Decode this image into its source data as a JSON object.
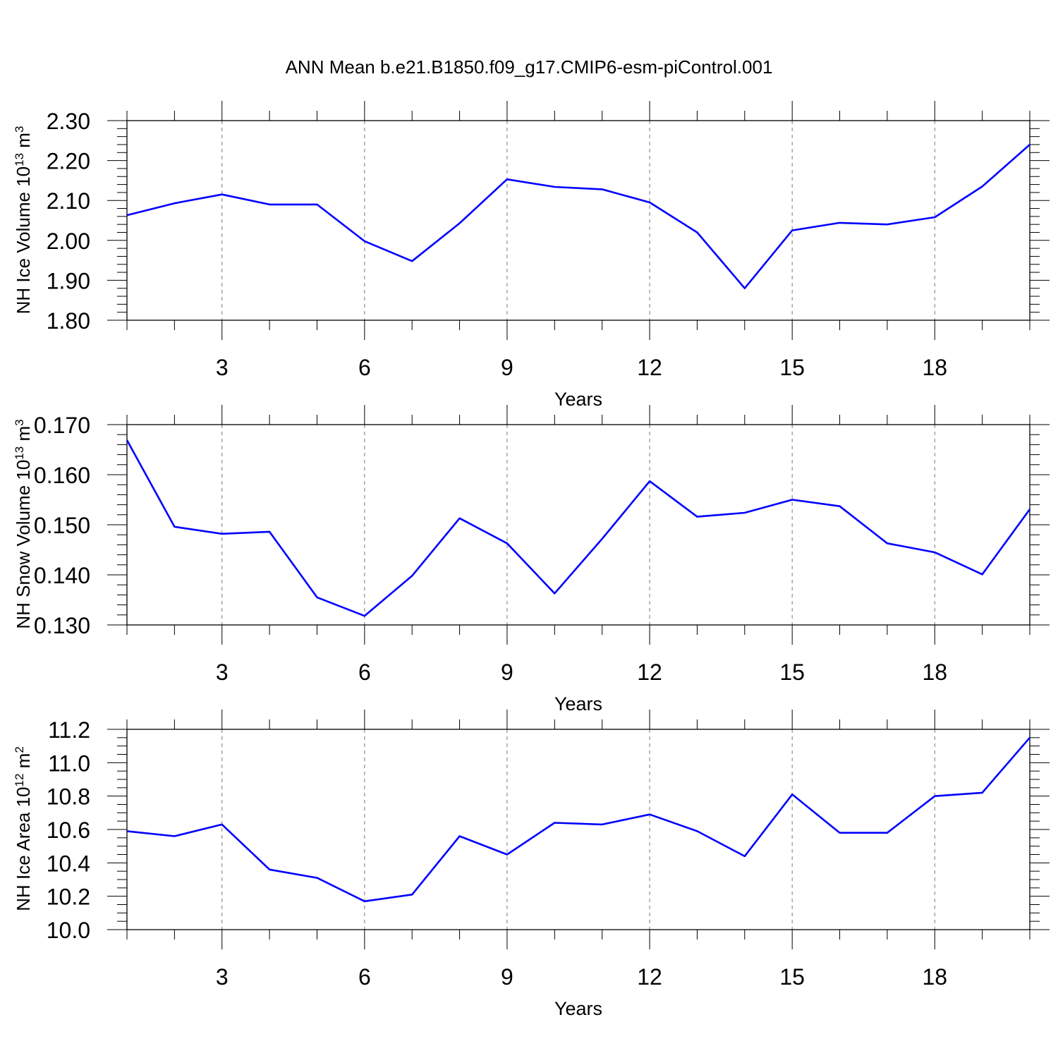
{
  "title": "ANN Mean b.e21.B1850.f09_g17.CMIP6-esm-piControl.001",
  "series_color": "#0000ff",
  "chart_data": [
    {
      "type": "line",
      "xlabel": "Years",
      "ylabel": "NH Ice Volume 10",
      "ylabel_exp": "13",
      "ylabel_unit": " m",
      "ylabel_unit_exp": "3",
      "xlim": [
        1,
        20
      ],
      "xticks": [
        3,
        6,
        9,
        12,
        15,
        18
      ],
      "ylim": [
        1.8,
        2.3
      ],
      "yticks": [
        "1.80",
        "1.90",
        "2.00",
        "2.10",
        "2.20",
        "2.30"
      ],
      "grid": "dashed vertical at major x ticks",
      "x": [
        1,
        2,
        3,
        4,
        5,
        6,
        7,
        8,
        9,
        10,
        11,
        12,
        13,
        14,
        15,
        16,
        17,
        18,
        19,
        20
      ],
      "values": [
        2.063,
        2.093,
        2.115,
        2.09,
        2.09,
        1.998,
        1.948,
        2.043,
        2.153,
        2.134,
        2.128,
        2.095,
        2.02,
        1.88,
        2.025,
        2.044,
        2.04,
        2.058,
        2.135,
        2.24
      ]
    },
    {
      "type": "line",
      "xlabel": "Years",
      "ylabel": "NH Snow Volume 10",
      "ylabel_exp": "13",
      "ylabel_unit": " m",
      "ylabel_unit_exp": "3",
      "xlim": [
        1,
        20
      ],
      "xticks": [
        3,
        6,
        9,
        12,
        15,
        18
      ],
      "ylim": [
        0.13,
        0.17
      ],
      "yticks": [
        "0.130",
        "0.140",
        "0.150",
        "0.160",
        "0.170"
      ],
      "grid": "dashed vertical at major x ticks",
      "x": [
        1,
        2,
        3,
        4,
        5,
        6,
        7,
        8,
        9,
        10,
        11,
        12,
        13,
        14,
        15,
        16,
        17,
        18,
        19,
        20
      ],
      "values": [
        0.1669,
        0.1496,
        0.1482,
        0.1486,
        0.1355,
        0.1318,
        0.1398,
        0.1513,
        0.1463,
        0.1363,
        0.1472,
        0.1587,
        0.1516,
        0.1524,
        0.155,
        0.1537,
        0.1463,
        0.1445,
        0.1401,
        0.1531
      ]
    },
    {
      "type": "line",
      "xlabel": "Years",
      "ylabel": "NH Ice Area 10",
      "ylabel_exp": "12",
      "ylabel_unit": " m",
      "ylabel_unit_exp": "2",
      "xlim": [
        1,
        20
      ],
      "xticks": [
        3,
        6,
        9,
        12,
        15,
        18
      ],
      "ylim": [
        10.0,
        11.2
      ],
      "yticks": [
        "10.0",
        "10.2",
        "10.4",
        "10.6",
        "10.8",
        "11.0",
        "11.2"
      ],
      "grid": "dashed vertical at major x ticks",
      "x": [
        1,
        2,
        3,
        4,
        5,
        6,
        7,
        8,
        9,
        10,
        11,
        12,
        13,
        14,
        15,
        16,
        17,
        18,
        19,
        20
      ],
      "values": [
        10.59,
        10.56,
        10.63,
        10.36,
        10.31,
        10.17,
        10.21,
        10.56,
        10.45,
        10.64,
        10.63,
        10.69,
        10.59,
        10.44,
        10.81,
        10.58,
        10.58,
        10.8,
        10.82,
        11.15
      ]
    }
  ]
}
